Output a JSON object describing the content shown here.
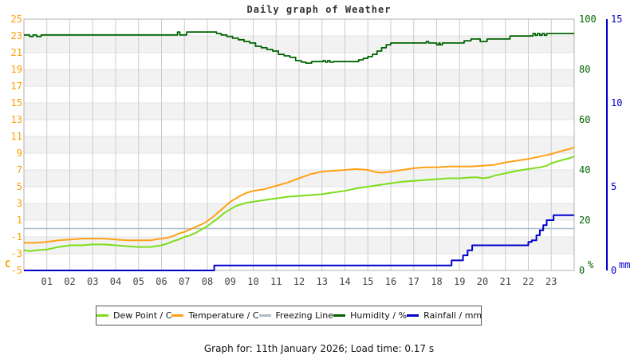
{
  "header": {
    "title": "Daily graph of Weather"
  },
  "footer": {
    "text": "Graph for: 11th January 2026; Load time: 0.17 s"
  },
  "chart_data": {
    "type": "line",
    "title": "Daily graph of Weather",
    "grid": true,
    "legend_position": "bottom",
    "legend": [
      "Dew Point / C",
      "Temperature / C",
      "Freezing Line",
      "Humidity / %",
      "Rainfall / mm"
    ],
    "colors": {
      "band": "#f2f2f2",
      "grid": "#cccccc",
      "band_line": "#e3e3e3",
      "border": "#b0b0b0",
      "title": "#333333",
      "x_labels": "#444444",
      "footer": "#111111"
    },
    "x_axis": {
      "range": [
        0,
        24
      ],
      "ticks": [
        "01",
        "02",
        "03",
        "04",
        "05",
        "06",
        "07",
        "08",
        "09",
        "10",
        "11",
        "12",
        "13",
        "14",
        "15",
        "16",
        "17",
        "18",
        "19",
        "20",
        "21",
        "22",
        "23"
      ]
    },
    "y_axis_left": {
      "unit": "C",
      "color": "#ff9c00",
      "range": [
        -5,
        25
      ],
      "ticks": [
        25,
        23,
        21,
        19,
        17,
        15,
        13,
        11,
        9,
        7,
        5,
        3,
        1,
        -1,
        -3,
        -5
      ]
    },
    "y_axis_humidity": {
      "unit": "%",
      "color": "#006400",
      "range": [
        0,
        100
      ],
      "ticks": [
        100,
        80,
        60,
        40,
        20,
        0
      ]
    },
    "y_axis_rain": {
      "unit": "mm",
      "color": "#0000cc",
      "range": [
        0,
        15
      ],
      "ticks": [
        15,
        10,
        5,
        0
      ]
    },
    "series": [
      {
        "name": "Freezing Line",
        "color": "#a9bccb",
        "axis": "temp",
        "style": "line",
        "width": 1.5,
        "points": [
          [
            0,
            0
          ],
          [
            24,
            0
          ]
        ]
      },
      {
        "name": "Dew Point / C",
        "color": "#7ddd1c",
        "axis": "temp",
        "style": "line",
        "width": 2,
        "points": [
          [
            0,
            -2.6
          ],
          [
            0.3,
            -2.7
          ],
          [
            0.5,
            -2.6
          ],
          [
            1,
            -2.5
          ],
          [
            1.5,
            -2.2
          ],
          [
            2,
            -2
          ],
          [
            2.5,
            -2
          ],
          [
            3,
            -1.9
          ],
          [
            3.5,
            -1.9
          ],
          [
            4,
            -2
          ],
          [
            4.5,
            -2.1
          ],
          [
            5,
            -2.2
          ],
          [
            5.5,
            -2.2
          ],
          [
            6,
            -2
          ],
          [
            6.25,
            -1.8
          ],
          [
            6.5,
            -1.5
          ],
          [
            6.75,
            -1.3
          ],
          [
            7,
            -1
          ],
          [
            7.25,
            -0.8
          ],
          [
            7.5,
            -0.5
          ],
          [
            7.75,
            -0.1
          ],
          [
            8,
            0.3
          ],
          [
            8.25,
            0.8
          ],
          [
            8.5,
            1.3
          ],
          [
            8.75,
            1.9
          ],
          [
            9,
            2.3
          ],
          [
            9.25,
            2.7
          ],
          [
            9.5,
            2.9
          ],
          [
            9.75,
            3.1
          ],
          [
            10,
            3.2
          ],
          [
            10.5,
            3.4
          ],
          [
            11,
            3.6
          ],
          [
            11.5,
            3.8
          ],
          [
            12,
            3.9
          ],
          [
            12.5,
            4
          ],
          [
            13,
            4.1
          ],
          [
            13.5,
            4.3
          ],
          [
            14,
            4.5
          ],
          [
            14.5,
            4.8
          ],
          [
            15,
            5
          ],
          [
            15.5,
            5.2
          ],
          [
            16,
            5.4
          ],
          [
            16.5,
            5.6
          ],
          [
            17,
            5.7
          ],
          [
            17.5,
            5.8
          ],
          [
            18,
            5.9
          ],
          [
            18.5,
            6
          ],
          [
            19,
            6
          ],
          [
            19.5,
            6.1
          ],
          [
            19.8,
            6.1
          ],
          [
            20,
            6
          ],
          [
            20.3,
            6.1
          ],
          [
            20.5,
            6.3
          ],
          [
            21,
            6.6
          ],
          [
            21.5,
            6.9
          ],
          [
            22,
            7.1
          ],
          [
            22.5,
            7.3
          ],
          [
            22.8,
            7.5
          ],
          [
            23,
            7.8
          ],
          [
            23.5,
            8.2
          ],
          [
            23.8,
            8.4
          ],
          [
            24,
            8.6
          ]
        ]
      },
      {
        "name": "Temperature / C",
        "color": "#ffa014",
        "axis": "temp",
        "style": "line",
        "width": 2,
        "points": [
          [
            0,
            -1.7
          ],
          [
            0.5,
            -1.7
          ],
          [
            1,
            -1.6
          ],
          [
            1.5,
            -1.4
          ],
          [
            2,
            -1.3
          ],
          [
            2.5,
            -1.2
          ],
          [
            3,
            -1.2
          ],
          [
            3.5,
            -1.2
          ],
          [
            4,
            -1.3
          ],
          [
            4.5,
            -1.4
          ],
          [
            5,
            -1.4
          ],
          [
            5.5,
            -1.4
          ],
          [
            6,
            -1.2
          ],
          [
            6.25,
            -1.1
          ],
          [
            6.5,
            -0.9
          ],
          [
            6.75,
            -0.6
          ],
          [
            7,
            -0.4
          ],
          [
            7.25,
            -0.1
          ],
          [
            7.5,
            0.2
          ],
          [
            7.75,
            0.5
          ],
          [
            8,
            0.9
          ],
          [
            8.25,
            1.4
          ],
          [
            8.5,
            2
          ],
          [
            8.75,
            2.6
          ],
          [
            9,
            3.2
          ],
          [
            9.25,
            3.6
          ],
          [
            9.5,
            4
          ],
          [
            9.75,
            4.3
          ],
          [
            10,
            4.5
          ],
          [
            10.5,
            4.7
          ],
          [
            11,
            5.1
          ],
          [
            11.5,
            5.5
          ],
          [
            12,
            6
          ],
          [
            12.5,
            6.5
          ],
          [
            13,
            6.8
          ],
          [
            13.5,
            6.9
          ],
          [
            14,
            7
          ],
          [
            14.5,
            7.1
          ],
          [
            15,
            7
          ],
          [
            15.25,
            6.8
          ],
          [
            15.5,
            6.7
          ],
          [
            15.75,
            6.7
          ],
          [
            16,
            6.8
          ],
          [
            16.5,
            7
          ],
          [
            17,
            7.2
          ],
          [
            17.5,
            7.3
          ],
          [
            18,
            7.3
          ],
          [
            18.5,
            7.4
          ],
          [
            19,
            7.4
          ],
          [
            19.5,
            7.4
          ],
          [
            20,
            7.5
          ],
          [
            20.5,
            7.6
          ],
          [
            21,
            7.9
          ],
          [
            21.5,
            8.1
          ],
          [
            22,
            8.3
          ],
          [
            22.5,
            8.6
          ],
          [
            23,
            8.9
          ],
          [
            23.5,
            9.3
          ],
          [
            23.8,
            9.5
          ],
          [
            24,
            9.7
          ]
        ]
      },
      {
        "name": "Humidity / %",
        "color": "#006400",
        "axis": "humidity",
        "style": "step",
        "width": 1.8,
        "points": [
          [
            0,
            93.7
          ],
          [
            0.25,
            93.1
          ],
          [
            0.4,
            93.7
          ],
          [
            0.55,
            93.1
          ],
          [
            0.75,
            93.7
          ],
          [
            6.7,
            94.9
          ],
          [
            6.8,
            93.7
          ],
          [
            7.1,
            94.9
          ],
          [
            8.4,
            94.3
          ],
          [
            8.6,
            93.7
          ],
          [
            8.85,
            93.1
          ],
          [
            9.1,
            92.4
          ],
          [
            9.35,
            91.8
          ],
          [
            9.6,
            91.1
          ],
          [
            9.85,
            90.5
          ],
          [
            10.1,
            89.2
          ],
          [
            10.35,
            88.6
          ],
          [
            10.6,
            87.9
          ],
          [
            10.85,
            87.3
          ],
          [
            11.1,
            86
          ],
          [
            11.35,
            85.4
          ],
          [
            11.6,
            84.8
          ],
          [
            11.85,
            83.5
          ],
          [
            12.1,
            82.9
          ],
          [
            12.3,
            82.5
          ],
          [
            12.55,
            83.1
          ],
          [
            13.05,
            83.5
          ],
          [
            13.15,
            82.9
          ],
          [
            13.25,
            83.5
          ],
          [
            13.35,
            82.9
          ],
          [
            13.5,
            83.1
          ],
          [
            14.6,
            83.8
          ],
          [
            14.8,
            84.4
          ],
          [
            15,
            85.1
          ],
          [
            15.2,
            86
          ],
          [
            15.4,
            87.3
          ],
          [
            15.6,
            88.6
          ],
          [
            15.8,
            89.8
          ],
          [
            16,
            90.5
          ],
          [
            17.55,
            91.1
          ],
          [
            17.65,
            90.5
          ],
          [
            18,
            89.8
          ],
          [
            18.1,
            90.5
          ],
          [
            18.15,
            89.8
          ],
          [
            18.25,
            90.5
          ],
          [
            19.2,
            91.4
          ],
          [
            19.5,
            92.1
          ],
          [
            19.9,
            91.1
          ],
          [
            20.2,
            92.1
          ],
          [
            21.2,
            93.3
          ],
          [
            22.2,
            94.3
          ],
          [
            22.3,
            93.6
          ],
          [
            22.4,
            94.3
          ],
          [
            22.5,
            93.6
          ],
          [
            22.6,
            94.3
          ],
          [
            22.7,
            93.6
          ],
          [
            22.8,
            94.3
          ],
          [
            24,
            94.3
          ]
        ]
      },
      {
        "name": "Rainfall / mm",
        "color": "#0000cc",
        "axis": "rain",
        "style": "step",
        "width": 2,
        "points": [
          [
            0,
            0
          ],
          [
            8.3,
            0.3
          ],
          [
            18.65,
            0.6
          ],
          [
            19.15,
            0.9
          ],
          [
            19.35,
            1.2
          ],
          [
            19.55,
            1.5
          ],
          [
            22,
            1.7
          ],
          [
            22.15,
            1.8
          ],
          [
            22.35,
            2.1
          ],
          [
            22.5,
            2.4
          ],
          [
            22.65,
            2.7
          ],
          [
            22.8,
            3
          ],
          [
            23.1,
            3.3
          ],
          [
            24,
            3.3
          ]
        ]
      }
    ]
  }
}
